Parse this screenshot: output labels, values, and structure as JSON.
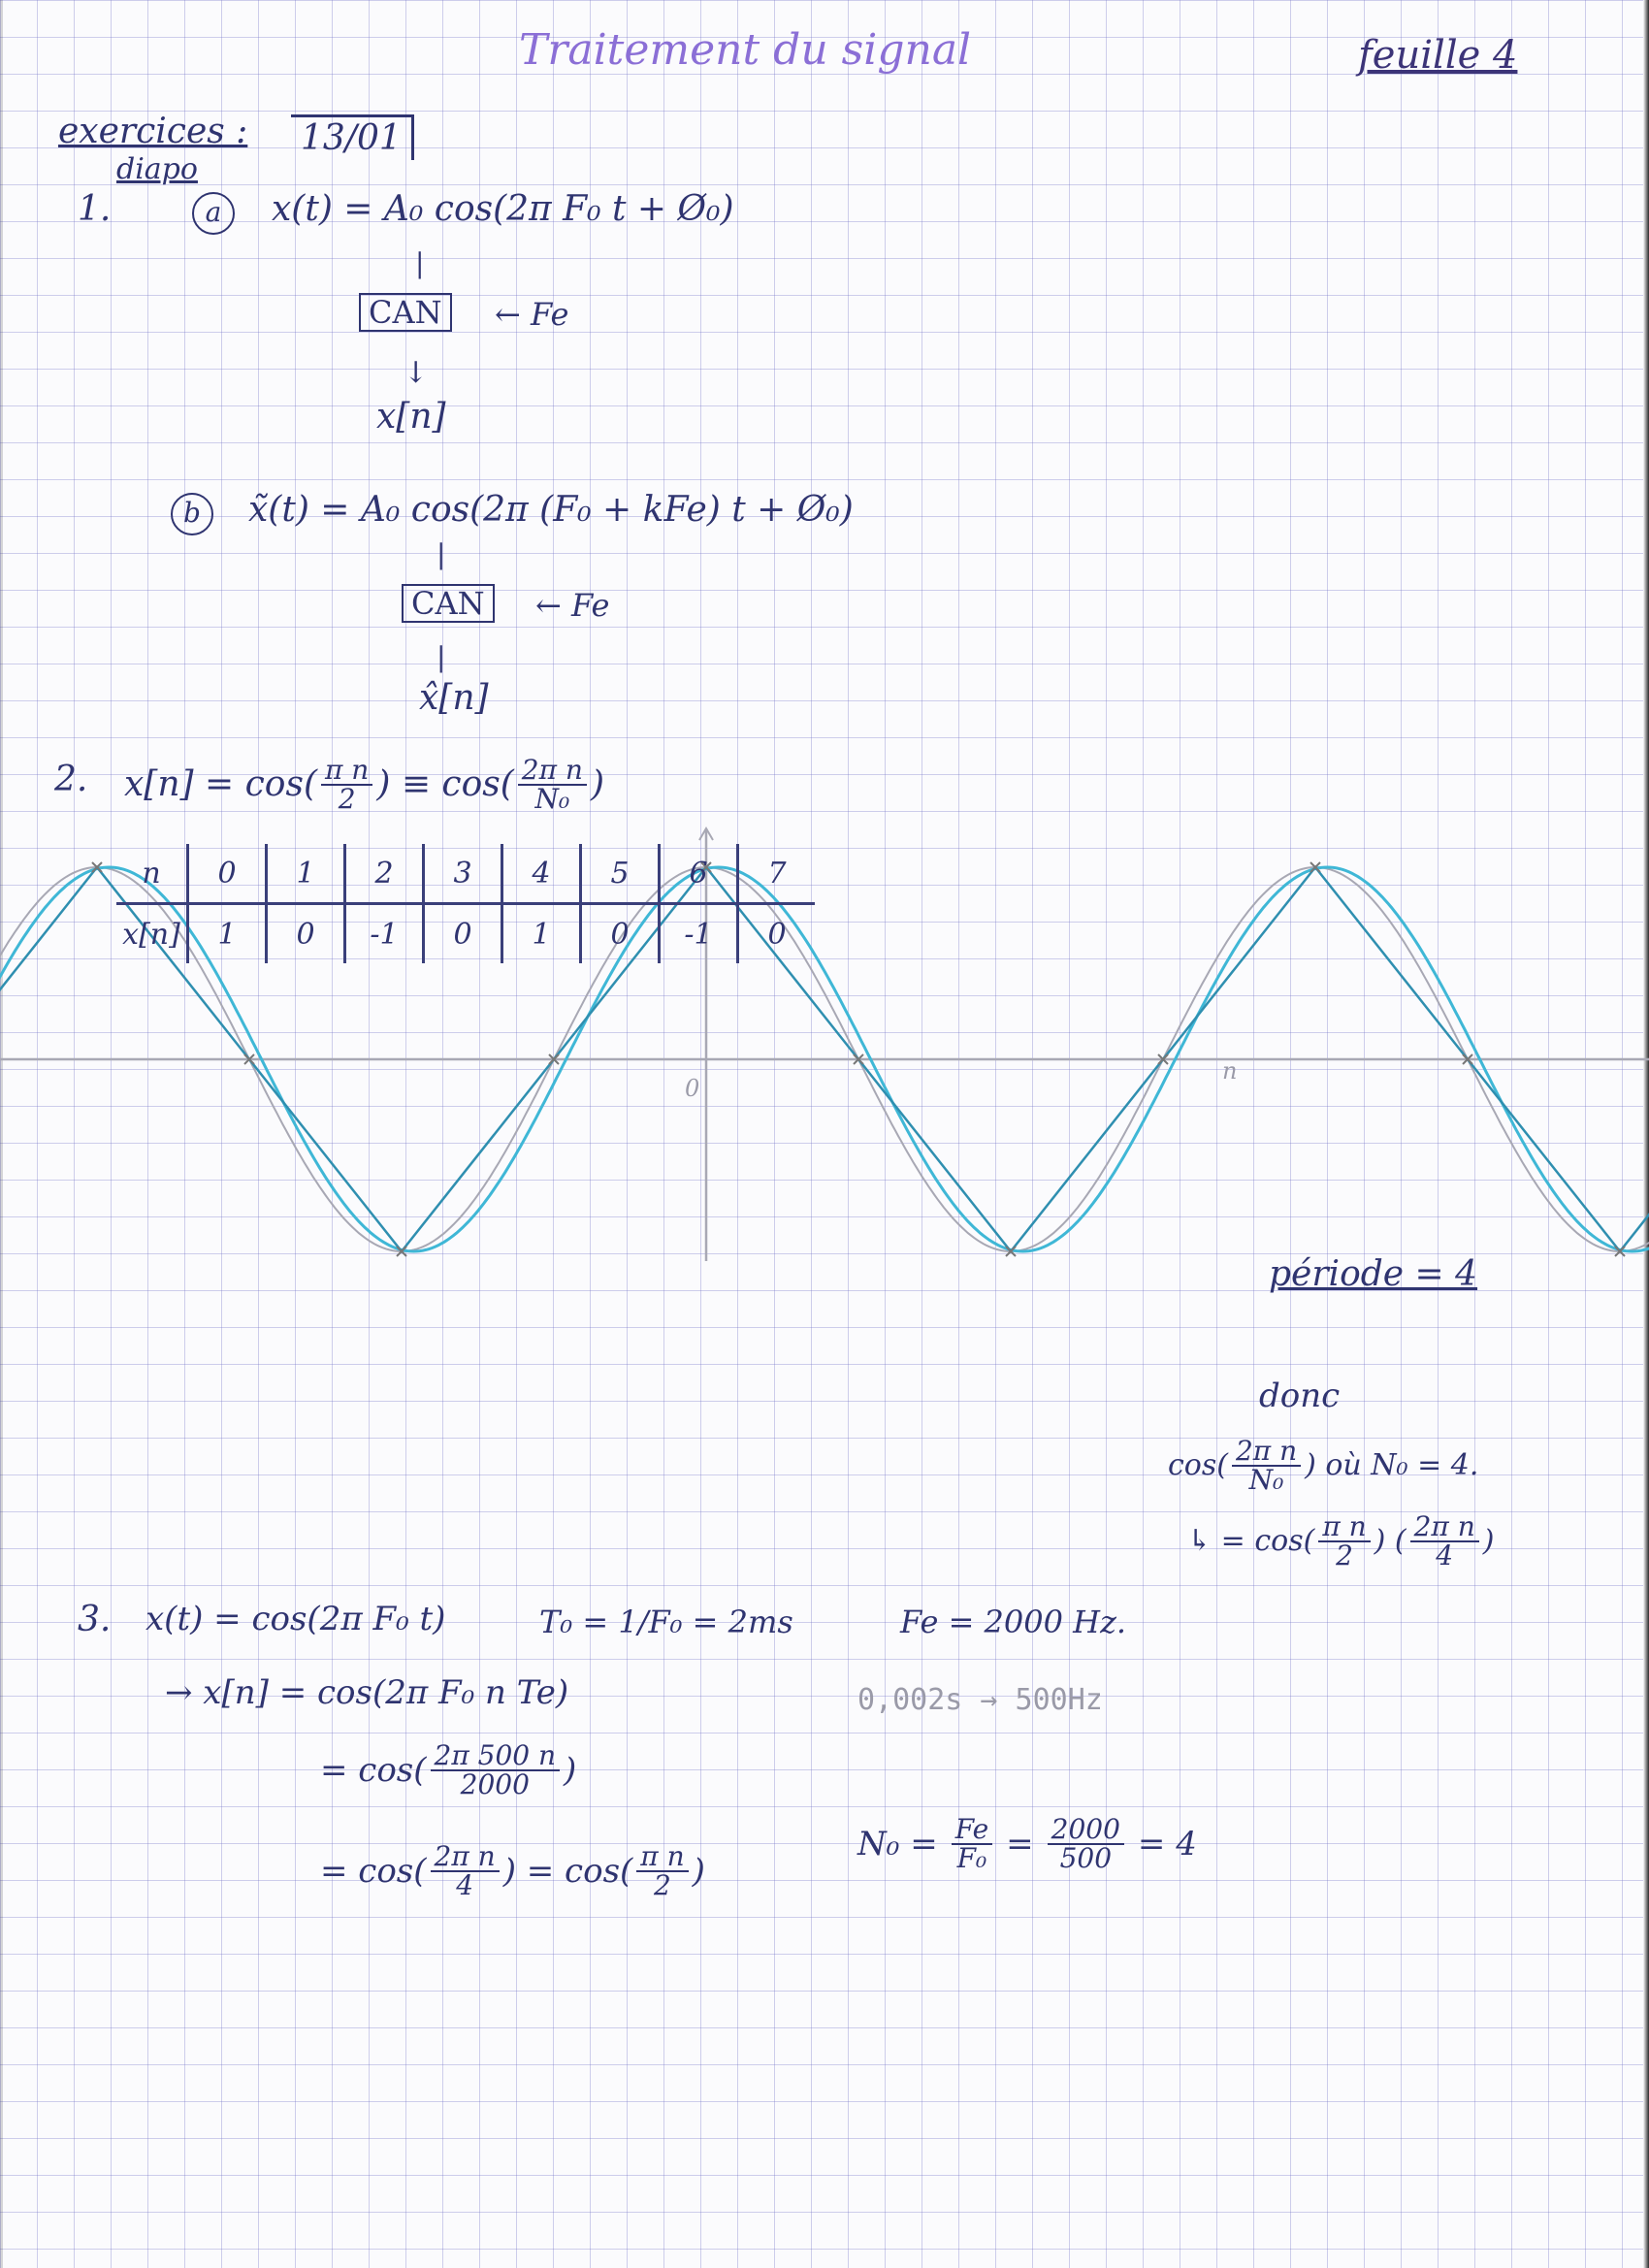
{
  "header": {
    "title": "Traitement du signal",
    "sheet": "feuille 4"
  },
  "intro": {
    "exercises_label": "exercices :",
    "diapo_label": "diapo",
    "date": "13/01"
  },
  "ex1": {
    "num": "1.",
    "a_label": "a",
    "a_eq": "x(t) = A₀ cos(2π F₀ t + Ø₀)",
    "can": "CAN",
    "fe_arrow": "← Fe",
    "a_out": "x[n]",
    "b_label": "b",
    "b_eq": "x̃(t) = A₀ cos(2π (F₀ + kFe) t + Ø₀)",
    "b_out": "x̂[n]"
  },
  "ex2": {
    "num": "2.",
    "eq_left": "x[n] = cos(",
    "frac1_num": "π n",
    "frac1_den": "2",
    "eq_mid": ") ≡ cos(",
    "frac2_num": "2π n",
    "frac2_den": "N₀",
    "eq_end": ")",
    "axis_n": "n",
    "axis_zero": "0",
    "period": "période = 4",
    "table": {
      "row1_label": "n",
      "row2_label": "x[n]",
      "n": [
        "0",
        "1",
        "2",
        "3",
        "4",
        "5",
        "6",
        "7"
      ],
      "x": [
        "1",
        "0",
        "-1",
        "0",
        "1",
        "0",
        "-1",
        "0"
      ]
    },
    "donc": "donc",
    "concl1_left": "cos(",
    "concl1_num": "2π n",
    "concl1_den": "N₀",
    "concl1_right": ") où N₀ = 4.",
    "concl2_left": "↳ = cos(",
    "concl2_num": "π n",
    "concl2_den": "2",
    "concl2_mid": ") (",
    "concl2_num2": "2π n",
    "concl2_den2": "4",
    "concl2_right": ")"
  },
  "ex3": {
    "num": "3.",
    "line1": "x(t) = cos(2π F₀ t)",
    "t0": "T₀ = 1/F₀ = 2ms",
    "fe": "Fe = 2000 Hz.",
    "line2": "→ x[n] = cos(2π F₀ n Te)",
    "pencil_note": "0,002s → 500Hz",
    "line3_left": "= cos(",
    "line3_num": "2π 500 n",
    "line3_den": "2000",
    "line3_right": ")",
    "line4_left": "= cos(",
    "line4_num": "2π n",
    "line4_den": "4",
    "line4_mid": ") = cos(",
    "line4_num2": "π n",
    "line4_den2": "2",
    "line4_right": ")",
    "n0_left": "N₀ =",
    "n0_num": "Fe",
    "n0_den": "F₀",
    "n0_eq": "=",
    "n0_num2": "2000",
    "n0_den2": "500",
    "n0_res": "= 4"
  },
  "chart_data": {
    "type": "line",
    "title": "",
    "xlabel": "n",
    "ylabel": "",
    "series": [
      {
        "values": [
          [
            -5,
            0
          ],
          [
            -4,
            1
          ],
          [
            -3,
            0
          ],
          [
            -2,
            -1
          ],
          [
            -1,
            0
          ],
          [
            0,
            1
          ],
          [
            1,
            0
          ],
          [
            2,
            -1
          ],
          [
            3,
            0
          ],
          [
            4,
            1
          ],
          [
            5,
            0
          ],
          [
            6,
            -1
          ],
          [
            7,
            0
          ]
        ]
      }
    ],
    "xlim": [
      -5,
      7.4
    ],
    "ylim": [
      -1,
      1
    ],
    "colors": {
      "pencil": "#a8a8b4",
      "ink1": "#2f8fb0",
      "ink2": "#3fb7d6"
    }
  }
}
